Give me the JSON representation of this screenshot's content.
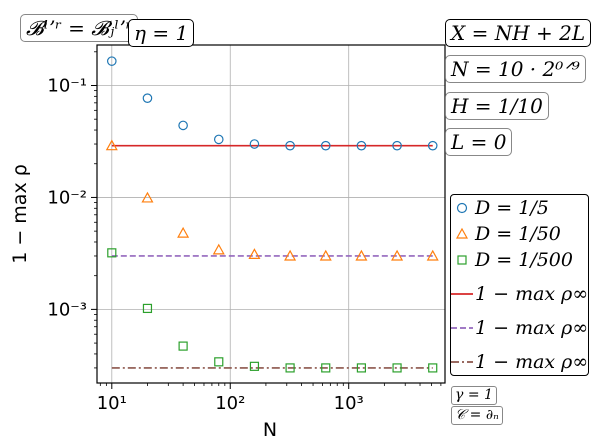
{
  "tags": {
    "bspace": "𝓑ˡʼʳ = 𝓑ⱼˡʼʳ",
    "eta": "η = 1",
    "X": "X = NH + 2L",
    "N": "N = 10 · 2⁰ᐟ⁹",
    "H": "H = 1/10",
    "L": "L = 0",
    "gamma": "γ = 1",
    "C": "𝒞 = ∂ₙ"
  },
  "chart_data": {
    "type": "scatter",
    "xscale": "log",
    "yscale": "log",
    "xlabel": "N",
    "ylabel": "1 − max ρ",
    "xlim": [
      7.5,
      6500
    ],
    "ylim": [
      0.00022,
      0.23
    ],
    "grid": true,
    "x": [
      10,
      20,
      40,
      80,
      160,
      320,
      640,
      1280,
      2560,
      5120
    ],
    "xticks": [
      {
        "value": 10,
        "label": "10¹"
      },
      {
        "value": 100,
        "label": "10²"
      },
      {
        "value": 1000,
        "label": "10³"
      }
    ],
    "yticks": [
      {
        "value": 0.1,
        "label": "10⁻¹"
      },
      {
        "value": 0.01,
        "label": "10⁻²"
      },
      {
        "value": 0.001,
        "label": "10⁻³"
      }
    ],
    "series": [
      {
        "name": "D = 1/5",
        "marker": "circle",
        "color": "#1f77b4",
        "values": [
          0.165,
          0.077,
          0.044,
          0.033,
          0.03,
          0.029,
          0.029,
          0.029,
          0.029,
          0.029
        ]
      },
      {
        "name": "D = 1/50",
        "marker": "triangle",
        "color": "#ff7f0e",
        "values": [
          0.029,
          0.0099,
          0.0048,
          0.0034,
          0.0031,
          0.003,
          0.003,
          0.003,
          0.003,
          0.003
        ]
      },
      {
        "name": "D = 1/500",
        "marker": "square",
        "color": "#2ca02c",
        "values": [
          0.0032,
          0.00102,
          0.00047,
          0.00034,
          0.00031,
          0.0003,
          0.0003,
          0.0003,
          0.0003,
          0.0003
        ]
      }
    ],
    "reference_lines": [
      {
        "name": "1 − max ρ∞",
        "y": 0.029,
        "style": "solid",
        "color": "#d62728"
      },
      {
        "name": "1 − max ρ∞",
        "y": 0.003,
        "style": "dashed",
        "color": "#9467bd"
      },
      {
        "name": "1 − max ρ∞",
        "y": 0.0003,
        "style": "dashdot",
        "color": "#8c564b"
      }
    ],
    "legend_position": "right"
  }
}
